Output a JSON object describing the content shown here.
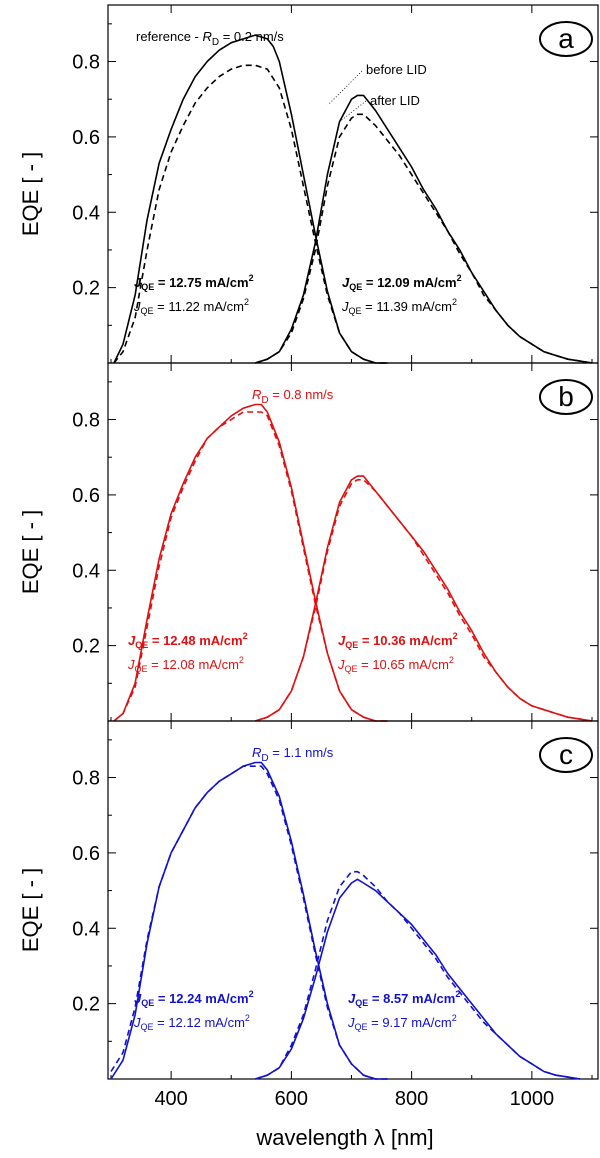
{
  "chart_data": [
    {
      "type": "line",
      "panel": "a",
      "color": "#000000",
      "title": "reference - R_D = 0.2 nms",
      "title_parts": {
        "pre": "reference - ",
        "sym": "R",
        "sub": "D",
        "post": " = 0.2 nm/s"
      },
      "legend": {
        "solid": "before LID",
        "dashed": "after LID"
      },
      "ylabel": "EQE [ - ]",
      "xlim": [
        300,
        1100
      ],
      "ylim": [
        0,
        0.95
      ],
      "yticks": [
        "0.2",
        "0.4",
        "0.6",
        "0.8"
      ],
      "annotations": [
        {
          "side": "left",
          "label_sym": "J",
          "label_sub": "QE",
          "value": " = 12.75 mA/cm",
          "sup": "2",
          "bold": true
        },
        {
          "side": "left",
          "label_sym": "J",
          "label_sub": "QE",
          "value": " = 11.22 mA/cm",
          "sup": "2",
          "bold": false
        },
        {
          "side": "right",
          "label_sym": "J",
          "label_sub": "QE",
          "value": " = 12.09 mA/cm",
          "sup": "2",
          "bold": true
        },
        {
          "side": "right",
          "label_sym": "J",
          "label_sub": "QE",
          "value": " = 11.39 mA/cm",
          "sup": "2",
          "bold": false
        }
      ],
      "series": [
        {
          "style": "solid",
          "x": [
            305,
            320,
            340,
            360,
            380,
            400,
            420,
            440,
            460,
            480,
            500,
            520,
            540,
            560,
            570,
            580,
            600,
            620,
            640,
            660,
            680,
            700,
            720,
            740,
            760
          ],
          "values": [
            0.0,
            0.05,
            0.18,
            0.38,
            0.53,
            0.62,
            0.7,
            0.76,
            0.8,
            0.83,
            0.85,
            0.86,
            0.87,
            0.86,
            0.84,
            0.8,
            0.66,
            0.5,
            0.34,
            0.19,
            0.08,
            0.03,
            0.01,
            0.0,
            0.0
          ]
        },
        {
          "style": "dashed",
          "x": [
            305,
            320,
            340,
            360,
            380,
            400,
            420,
            440,
            460,
            480,
            500,
            520,
            540,
            560,
            580,
            600,
            620,
            640,
            660,
            680,
            700,
            720,
            740,
            760
          ],
          "values": [
            0.0,
            0.03,
            0.12,
            0.3,
            0.46,
            0.56,
            0.63,
            0.69,
            0.73,
            0.76,
            0.78,
            0.79,
            0.79,
            0.78,
            0.73,
            0.62,
            0.47,
            0.32,
            0.18,
            0.08,
            0.03,
            0.01,
            0.0,
            0.0
          ]
        },
        {
          "style": "solid",
          "x": [
            540,
            560,
            580,
            600,
            620,
            640,
            660,
            680,
            700,
            710,
            720,
            740,
            760,
            780,
            800,
            820,
            840,
            860,
            880,
            900,
            920,
            940,
            960,
            980,
            1000,
            1020,
            1040,
            1060,
            1080,
            1100
          ],
          "values": [
            0.0,
            0.01,
            0.03,
            0.09,
            0.18,
            0.32,
            0.5,
            0.64,
            0.7,
            0.71,
            0.71,
            0.67,
            0.62,
            0.57,
            0.52,
            0.46,
            0.41,
            0.35,
            0.3,
            0.24,
            0.19,
            0.14,
            0.1,
            0.07,
            0.05,
            0.03,
            0.02,
            0.01,
            0.005,
            0.0
          ]
        },
        {
          "style": "dashed",
          "x": [
            540,
            560,
            580,
            600,
            620,
            640,
            660,
            680,
            700,
            710,
            720,
            740,
            760,
            780,
            800,
            820,
            840,
            860,
            880,
            900,
            920,
            940,
            960,
            980,
            1000,
            1020,
            1040,
            1060,
            1080,
            1100
          ],
          "values": [
            0.0,
            0.01,
            0.03,
            0.08,
            0.17,
            0.3,
            0.47,
            0.6,
            0.65,
            0.66,
            0.66,
            0.63,
            0.59,
            0.55,
            0.5,
            0.45,
            0.4,
            0.35,
            0.29,
            0.24,
            0.18,
            0.14,
            0.1,
            0.07,
            0.05,
            0.03,
            0.02,
            0.01,
            0.005,
            0.0
          ]
        }
      ]
    },
    {
      "type": "line",
      "panel": "b",
      "color": "#dd1111",
      "title_parts": {
        "pre": "",
        "sym": "R",
        "sub": "D",
        "post": " = 0.8 nm/s"
      },
      "ylabel": "EQE [ - ]",
      "xlim": [
        300,
        1100
      ],
      "ylim": [
        0,
        0.95
      ],
      "yticks": [
        "0.2",
        "0.4",
        "0.6",
        "0.8"
      ],
      "annotations": [
        {
          "side": "left",
          "label_sym": "J",
          "label_sub": "QE",
          "value": " = 12.48 mA/cm",
          "sup": "2",
          "bold": true
        },
        {
          "side": "left",
          "label_sym": "J",
          "label_sub": "QE",
          "value": " = 12.08 mA/cm",
          "sup": "2",
          "bold": false
        },
        {
          "side": "right",
          "label_sym": "J",
          "label_sub": "QE",
          "value": " = 10.36 mA/cm",
          "sup": "2",
          "bold": true
        },
        {
          "side": "right",
          "label_sym": "J",
          "label_sub": "QE",
          "value": " = 10.65 mA/cm",
          "sup": "2",
          "bold": false
        }
      ],
      "series": [
        {
          "style": "solid",
          "x": [
            305,
            320,
            340,
            360,
            380,
            400,
            420,
            440,
            460,
            480,
            500,
            520,
            540,
            550,
            560,
            580,
            600,
            620,
            640,
            660,
            680,
            700,
            720,
            740,
            760
          ],
          "values": [
            0.0,
            0.02,
            0.1,
            0.27,
            0.43,
            0.55,
            0.63,
            0.7,
            0.75,
            0.78,
            0.81,
            0.83,
            0.84,
            0.84,
            0.82,
            0.74,
            0.62,
            0.47,
            0.32,
            0.18,
            0.08,
            0.03,
            0.01,
            0.0,
            0.0
          ]
        },
        {
          "style": "dashed",
          "x": [
            305,
            320,
            340,
            360,
            380,
            400,
            420,
            440,
            460,
            480,
            500,
            520,
            540,
            550,
            560,
            580,
            600,
            620,
            640,
            660,
            680,
            700,
            720,
            740,
            760
          ],
          "values": [
            0.0,
            0.02,
            0.09,
            0.25,
            0.41,
            0.54,
            0.62,
            0.69,
            0.75,
            0.78,
            0.8,
            0.82,
            0.82,
            0.82,
            0.81,
            0.73,
            0.61,
            0.46,
            0.31,
            0.18,
            0.08,
            0.03,
            0.01,
            0.0,
            0.0
          ]
        },
        {
          "style": "solid",
          "x": [
            540,
            560,
            580,
            600,
            620,
            640,
            660,
            680,
            700,
            710,
            720,
            740,
            760,
            780,
            800,
            820,
            840,
            860,
            880,
            900,
            920,
            940,
            960,
            980,
            1000,
            1020,
            1040,
            1060,
            1080,
            1100
          ],
          "values": [
            0.0,
            0.01,
            0.03,
            0.08,
            0.17,
            0.31,
            0.46,
            0.58,
            0.64,
            0.65,
            0.65,
            0.61,
            0.57,
            0.53,
            0.49,
            0.45,
            0.4,
            0.35,
            0.29,
            0.24,
            0.18,
            0.13,
            0.09,
            0.06,
            0.04,
            0.03,
            0.02,
            0.01,
            0.005,
            0.0
          ]
        },
        {
          "style": "dashed",
          "x": [
            540,
            560,
            580,
            600,
            620,
            640,
            660,
            680,
            700,
            710,
            720,
            740,
            760,
            780,
            800,
            820,
            840,
            860,
            880,
            900,
            920,
            940,
            960,
            980,
            1000,
            1020,
            1040,
            1060,
            1080,
            1100
          ],
          "values": [
            0.0,
            0.01,
            0.03,
            0.08,
            0.17,
            0.3,
            0.45,
            0.57,
            0.63,
            0.64,
            0.64,
            0.61,
            0.57,
            0.53,
            0.49,
            0.44,
            0.39,
            0.34,
            0.28,
            0.23,
            0.17,
            0.13,
            0.09,
            0.06,
            0.04,
            0.03,
            0.02,
            0.01,
            0.005,
            0.0
          ]
        }
      ]
    },
    {
      "type": "line",
      "panel": "c",
      "color": "#1111cc",
      "title_parts": {
        "pre": "",
        "sym": "R",
        "sub": "D",
        "post": " = 1.1 nm/s"
      },
      "xlabel": "wavelength λ [nm]",
      "ylabel": "EQE [ - ]",
      "xlim": [
        300,
        1100
      ],
      "ylim": [
        0,
        0.95
      ],
      "xticks": [
        "400",
        "600",
        "800",
        "1000"
      ],
      "yticks": [
        "0.2",
        "0.4",
        "0.6",
        "0.8"
      ],
      "annotations": [
        {
          "side": "left",
          "label_sym": "J",
          "label_sub": "QE",
          "value": " = 12.24 mA/cm",
          "sup": "2",
          "bold": true
        },
        {
          "side": "left",
          "label_sym": "J",
          "label_sub": "QE",
          "value": " = 12.12 mA/cm",
          "sup": "2",
          "bold": false
        },
        {
          "side": "right",
          "label_sym": "J",
          "label_sub": "QE",
          "value": " = 8.57 mA/cm",
          "sup": "2",
          "bold": true
        },
        {
          "side": "right",
          "label_sym": "J",
          "label_sub": "QE",
          "value": " = 9.17 mA/cm",
          "sup": "2",
          "bold": false
        }
      ],
      "series": [
        {
          "style": "solid",
          "x": [
            300,
            320,
            340,
            360,
            380,
            400,
            420,
            440,
            460,
            480,
            500,
            520,
            540,
            550,
            560,
            580,
            600,
            620,
            640,
            660,
            680,
            700,
            720,
            740,
            760
          ],
          "values": [
            0.0,
            0.05,
            0.17,
            0.36,
            0.51,
            0.6,
            0.66,
            0.72,
            0.76,
            0.79,
            0.81,
            0.83,
            0.84,
            0.84,
            0.82,
            0.75,
            0.63,
            0.49,
            0.34,
            0.2,
            0.09,
            0.04,
            0.01,
            0.0,
            0.0
          ]
        },
        {
          "style": "dashed",
          "x": [
            300,
            320,
            340,
            360,
            380,
            400,
            420,
            440,
            460,
            480,
            500,
            520,
            540,
            550,
            560,
            580,
            600,
            620,
            640,
            660,
            680,
            700,
            720,
            740,
            760
          ],
          "values": [
            0.02,
            0.07,
            0.19,
            0.37,
            0.51,
            0.6,
            0.66,
            0.72,
            0.76,
            0.79,
            0.81,
            0.83,
            0.83,
            0.83,
            0.81,
            0.74,
            0.62,
            0.48,
            0.33,
            0.19,
            0.09,
            0.04,
            0.01,
            0.0,
            0.0
          ]
        },
        {
          "style": "solid",
          "x": [
            540,
            560,
            580,
            600,
            620,
            640,
            660,
            680,
            700,
            710,
            720,
            740,
            760,
            780,
            800,
            820,
            840,
            860,
            880,
            900,
            920,
            940,
            960,
            980,
            1000,
            1020,
            1040,
            1060,
            1080
          ],
          "values": [
            0.0,
            0.01,
            0.03,
            0.08,
            0.16,
            0.27,
            0.39,
            0.48,
            0.52,
            0.53,
            0.52,
            0.5,
            0.47,
            0.44,
            0.41,
            0.37,
            0.33,
            0.28,
            0.24,
            0.2,
            0.16,
            0.12,
            0.09,
            0.06,
            0.04,
            0.02,
            0.01,
            0.005,
            0.0
          ]
        },
        {
          "style": "dashed",
          "x": [
            540,
            560,
            580,
            600,
            620,
            640,
            660,
            680,
            700,
            710,
            720,
            740,
            760,
            780,
            800,
            820,
            840,
            860,
            880,
            900,
            920,
            940,
            960,
            980,
            1000,
            1020,
            1040,
            1060,
            1080
          ],
          "values": [
            0.0,
            0.01,
            0.03,
            0.09,
            0.17,
            0.29,
            0.42,
            0.51,
            0.55,
            0.55,
            0.54,
            0.51,
            0.47,
            0.44,
            0.4,
            0.36,
            0.32,
            0.27,
            0.23,
            0.19,
            0.15,
            0.12,
            0.09,
            0.06,
            0.04,
            0.02,
            0.01,
            0.005,
            0.0
          ]
        }
      ]
    }
  ]
}
